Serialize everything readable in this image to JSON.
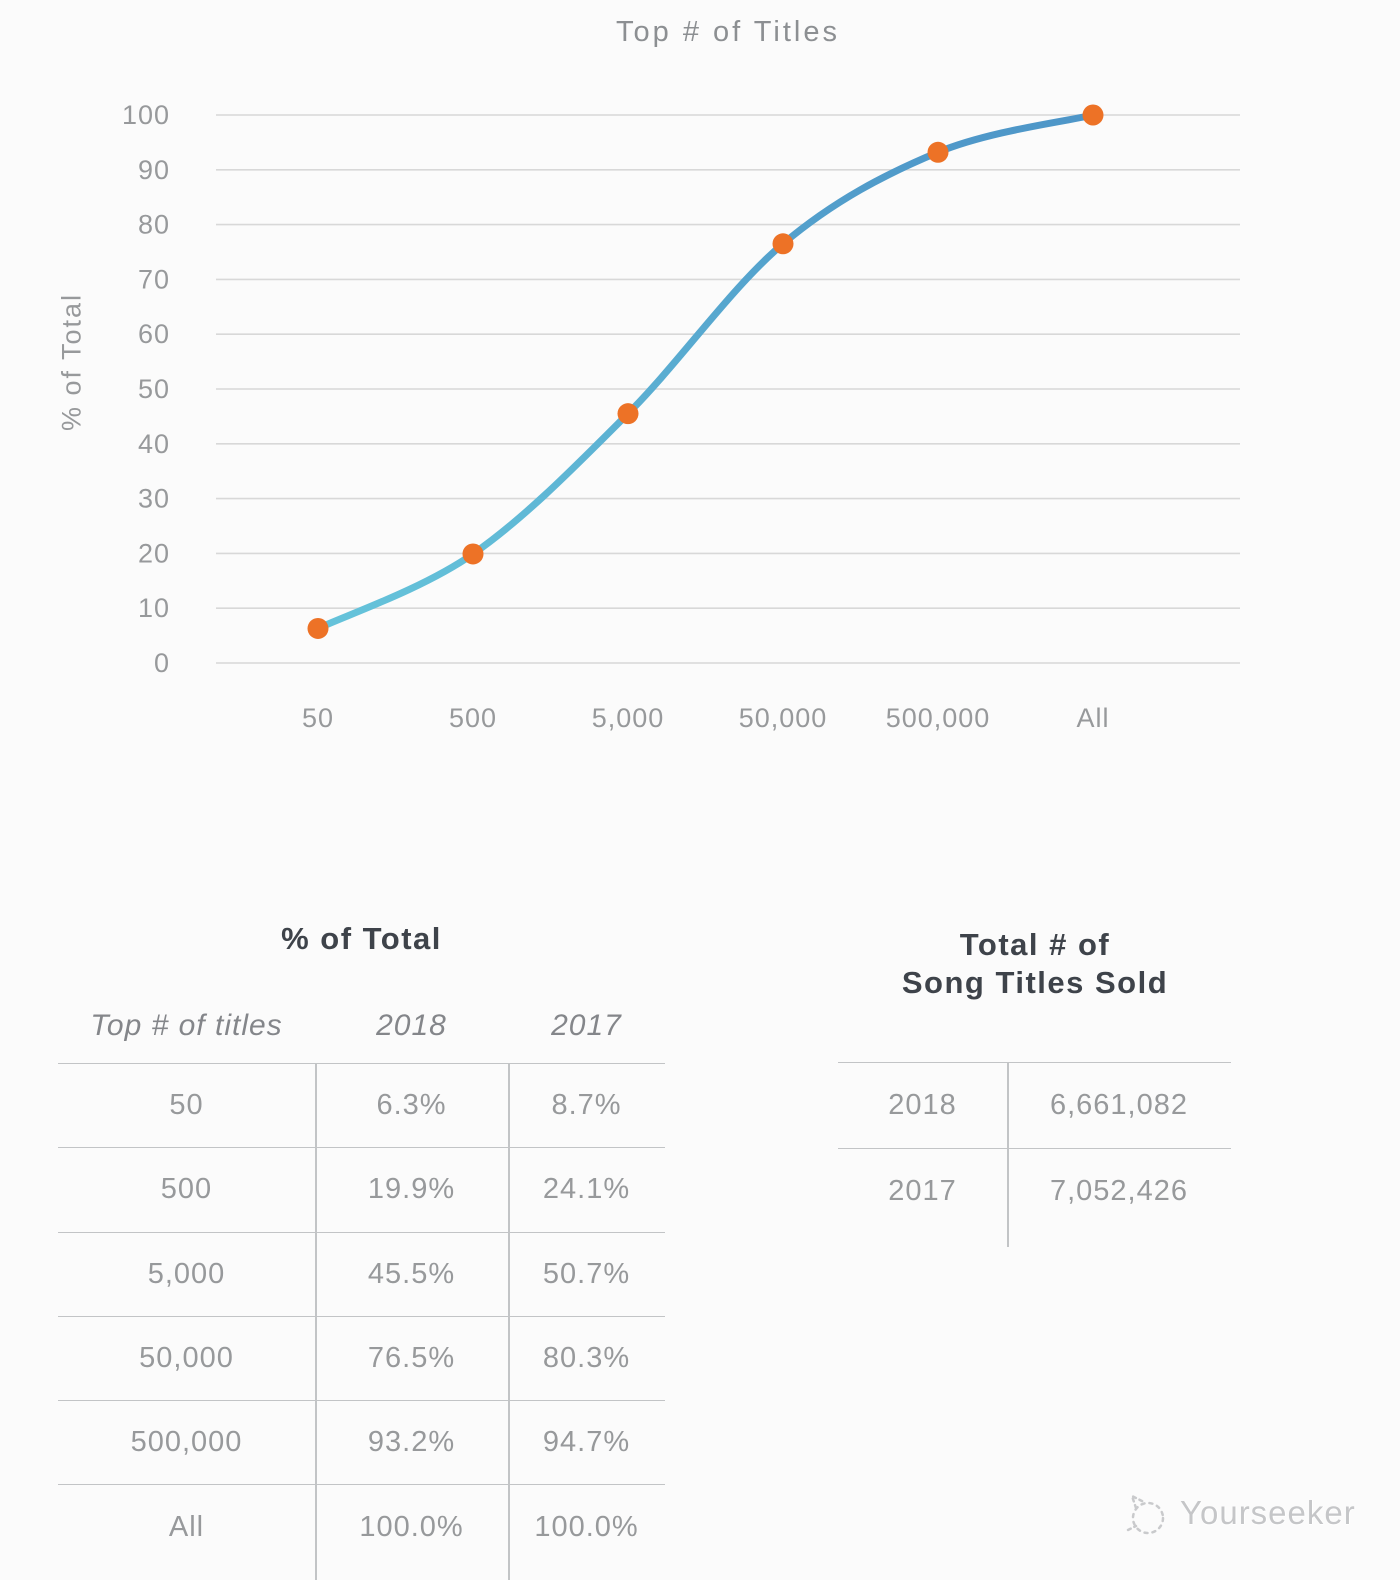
{
  "chart_data": {
    "type": "line",
    "title": "Top # of Titles",
    "xlabel": "",
    "ylabel": "% of Total",
    "categories": [
      "50",
      "500",
      "5,000",
      "50,000",
      "500,000",
      "All"
    ],
    "series": [
      {
        "name": "2018",
        "values": [
          6.3,
          19.9,
          45.5,
          76.5,
          93.2,
          100.0
        ]
      }
    ],
    "ylim": [
      0,
      100
    ],
    "yticks": [
      0,
      10,
      20,
      30,
      40,
      50,
      60,
      70,
      80,
      90,
      100
    ],
    "grid": true,
    "legend": false
  },
  "colors": {
    "line_top": "#4e96c8",
    "line_bottom": "#65c3da",
    "marker": "#ed7226",
    "gridline": "#d8d8d8",
    "axis_text": "#97999b"
  },
  "percent_table": {
    "title": "% of Total",
    "columns": [
      "Top # of titles",
      "2018",
      "2017"
    ],
    "rows": [
      [
        "50",
        "6.3%",
        "8.7%"
      ],
      [
        "500",
        "19.9%",
        "24.1%"
      ],
      [
        "5,000",
        "45.5%",
        "50.7%"
      ],
      [
        "50,000",
        "76.5%",
        "80.3%"
      ],
      [
        "500,000",
        "93.2%",
        "94.7%"
      ],
      [
        "All",
        "100.0%",
        "100.0%"
      ]
    ]
  },
  "totals_table": {
    "title_line1": "Total # of",
    "title_line2": "Song Titles Sold",
    "rows": [
      [
        "2018",
        "6,661,082"
      ],
      [
        "2017",
        "7,052,426"
      ]
    ]
  },
  "watermark": {
    "label": "Yourseeker"
  }
}
